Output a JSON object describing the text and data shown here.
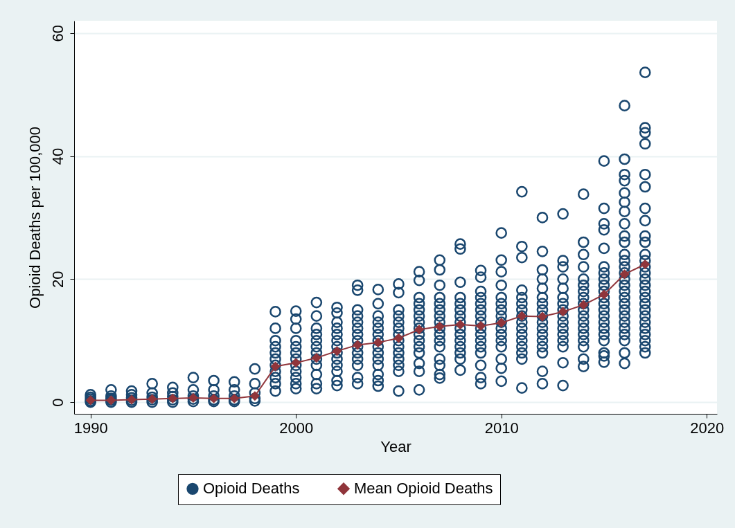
{
  "chart_data": {
    "type": "scatter",
    "xlabel": "Year",
    "ylabel": "Opioid Deaths per 100,000",
    "xlim": [
      1989.2,
      2020.5
    ],
    "ylim": [
      -1.9,
      62
    ],
    "xticks": [
      1990,
      2000,
      2010,
      2020
    ],
    "yticks": [
      0,
      20,
      40,
      60
    ],
    "grid": "y",
    "legend": "bottom",
    "series": [
      {
        "name": "Opioid Deaths",
        "marker": "circle",
        "color": "#1a476f",
        "x": [
          1990,
          1990,
          1990,
          1990,
          1990,
          1991,
          1991,
          1991,
          1991,
          1991,
          1992,
          1992,
          1992,
          1992,
          1992,
          1993,
          1993,
          1993,
          1993,
          1993,
          1994,
          1994,
          1994,
          1994,
          1994,
          1995,
          1995,
          1995,
          1995,
          1995,
          1996,
          1996,
          1996,
          1996,
          1996,
          1997,
          1997,
          1997,
          1997,
          1997,
          1998,
          1998,
          1998,
          1998,
          1998,
          1999,
          1999,
          1999,
          1999,
          1999,
          1999,
          1999,
          1999,
          1999,
          1999,
          1999,
          2000,
          2000,
          2000,
          2000,
          2000,
          2000,
          2000,
          2000,
          2000,
          2000,
          2000,
          2000,
          2001,
          2001,
          2001,
          2001,
          2001,
          2001,
          2001,
          2001,
          2001,
          2001,
          2001,
          2001,
          2002,
          2002,
          2002,
          2002,
          2002,
          2002,
          2002,
          2002,
          2002,
          2002,
          2002,
          2002,
          2002,
          2003,
          2003,
          2003,
          2003,
          2003,
          2003,
          2003,
          2003,
          2003,
          2003,
          2003,
          2003,
          2003,
          2003,
          2004,
          2004,
          2004,
          2004,
          2004,
          2004,
          2004,
          2004,
          2004,
          2004,
          2004,
          2004,
          2004,
          2004,
          2005,
          2005,
          2005,
          2005,
          2005,
          2005,
          2005,
          2005,
          2005,
          2005,
          2005,
          2005,
          2005,
          2005,
          2006,
          2006,
          2006,
          2006,
          2006,
          2006,
          2006,
          2006,
          2006,
          2006,
          2006,
          2006,
          2006,
          2006,
          2006,
          2007,
          2007,
          2007,
          2007,
          2007,
          2007,
          2007,
          2007,
          2007,
          2007,
          2007,
          2007,
          2007,
          2007,
          2007,
          2007,
          2008,
          2008,
          2008,
          2008,
          2008,
          2008,
          2008,
          2008,
          2008,
          2008,
          2008,
          2008,
          2008,
          2008,
          2008,
          2009,
          2009,
          2009,
          2009,
          2009,
          2009,
          2009,
          2009,
          2009,
          2009,
          2009,
          2009,
          2009,
          2009,
          2009,
          2009,
          2010,
          2010,
          2010,
          2010,
          2010,
          2010,
          2010,
          2010,
          2010,
          2010,
          2010,
          2010,
          2010,
          2010,
          2010,
          2010,
          2011,
          2011,
          2011,
          2011,
          2011,
          2011,
          2011,
          2011,
          2011,
          2011,
          2011,
          2011,
          2011,
          2011,
          2011,
          2011,
          2012,
          2012,
          2012,
          2012,
          2012,
          2012,
          2012,
          2012,
          2012,
          2012,
          2012,
          2012,
          2012,
          2012,
          2012,
          2012,
          2012,
          2013,
          2013,
          2013,
          2013,
          2013,
          2013,
          2013,
          2013,
          2013,
          2013,
          2013,
          2013,
          2013,
          2013,
          2013,
          2013,
          2014,
          2014,
          2014,
          2014,
          2014,
          2014,
          2014,
          2014,
          2014,
          2014,
          2014,
          2014,
          2014,
          2014,
          2014,
          2014,
          2014,
          2014,
          2015,
          2015,
          2015,
          2015,
          2015,
          2015,
          2015,
          2015,
          2015,
          2015,
          2015,
          2015,
          2015,
          2015,
          2015,
          2015,
          2015,
          2015,
          2015,
          2015,
          2015,
          2016,
          2016,
          2016,
          2016,
          2016,
          2016,
          2016,
          2016,
          2016,
          2016,
          2016,
          2016,
          2016,
          2016,
          2016,
          2016,
          2016,
          2016,
          2016,
          2016,
          2016,
          2016,
          2016,
          2016,
          2016,
          2016,
          2016,
          2017,
          2017,
          2017,
          2017,
          2017,
          2017,
          2017,
          2017,
          2017,
          2017,
          2017,
          2017,
          2017,
          2017,
          2017,
          2017,
          2017,
          2017,
          2017,
          2017,
          2017,
          2017,
          2017,
          2017,
          2017,
          2017,
          2017
        ],
        "values": [
          0,
          0.2,
          0.5,
          0.8,
          1.2,
          0,
          0.3,
          0.6,
          1.0,
          2.0,
          0,
          0.3,
          0.7,
          1.2,
          1.8,
          0,
          0.4,
          0.8,
          1.5,
          3.0,
          0,
          0.4,
          0.9,
          1.5,
          2.4,
          0.1,
          0.5,
          1.0,
          2.0,
          4.0,
          0.1,
          0.4,
          1.0,
          2.0,
          3.5,
          0.1,
          0.4,
          1.0,
          2.0,
          3.3,
          0.2,
          0.6,
          1.5,
          3.0,
          5.4,
          1.8,
          3,
          4,
          5,
          6,
          7,
          8,
          9,
          10,
          12,
          14.7,
          2.2,
          3,
          4,
          5,
          6,
          7,
          8,
          9,
          10,
          12,
          13.5,
          14.8,
          2.2,
          3,
          4.5,
          6,
          7,
          8,
          9,
          10,
          11,
          12,
          14,
          16.2,
          2.7,
          3.5,
          5,
          6,
          7,
          8,
          9,
          10,
          11,
          12,
          13,
          14.5,
          15.4,
          3,
          4,
          6,
          7,
          8,
          9,
          10,
          11,
          12,
          13,
          14,
          15,
          18.2,
          19,
          2.6,
          3.5,
          4.5,
          6,
          7,
          8,
          9,
          10,
          11,
          12,
          13,
          14,
          16,
          18.3,
          1.8,
          5,
          6,
          7,
          8,
          9,
          10,
          11,
          12,
          13,
          14,
          15,
          17.8,
          19.2,
          2.0,
          5,
          6.3,
          8,
          9,
          10,
          11,
          12,
          13,
          14,
          15,
          16,
          17,
          19.8,
          21.2,
          3.9,
          4.5,
          6,
          7,
          9,
          10,
          11,
          12,
          13,
          14,
          15,
          16,
          17,
          19,
          21.5,
          23.1,
          5.2,
          7,
          8,
          9,
          10,
          11,
          12,
          13,
          14,
          15,
          16,
          17,
          19.5,
          24.9,
          25.7,
          3,
          4,
          6,
          8,
          9,
          10,
          11,
          12,
          13,
          14,
          15,
          16,
          17,
          18,
          20.3,
          21.4,
          3.4,
          5.5,
          7,
          9,
          10,
          11,
          12,
          13,
          14,
          15,
          16,
          17,
          19,
          21.2,
          23.1,
          27.5,
          2.3,
          7,
          8,
          9,
          10,
          11,
          12,
          13,
          14,
          15,
          16,
          17,
          18.2,
          23.5,
          25.3,
          34.2,
          3,
          5,
          8,
          9,
          10,
          11,
          12,
          13,
          14,
          15,
          16,
          17,
          18.5,
          20,
          21.5,
          24.5,
          30,
          2.7,
          6.4,
          9,
          10,
          11,
          12,
          13,
          14,
          15,
          16,
          17,
          18.5,
          20,
          22,
          23,
          30.6,
          5.8,
          7,
          9,
          10,
          11,
          12,
          13,
          14,
          15,
          16,
          17,
          18,
          19,
          20,
          22,
          24,
          26,
          33.8,
          6.5,
          7.5,
          8,
          10,
          11,
          12,
          13,
          14,
          15,
          16,
          17,
          18,
          19,
          20,
          21,
          22,
          25,
          28,
          29,
          31.5,
          39.2,
          6.3,
          8,
          10,
          11,
          12,
          13,
          14,
          15,
          16,
          17,
          18,
          19,
          20,
          21,
          22,
          23,
          24,
          26,
          27,
          29,
          31,
          32.5,
          34,
          36,
          37,
          39.5,
          48.2,
          8,
          9,
          10,
          11,
          12,
          13,
          14,
          15,
          16,
          17,
          18,
          19,
          20,
          21,
          22,
          23,
          24,
          26,
          27,
          29.5,
          31.5,
          35,
          37,
          42,
          43.8,
          44.6,
          53.6
        ]
      },
      {
        "name": "Mean Opioid Deaths",
        "type": "line",
        "marker": "diamond",
        "color": "#90353b",
        "x": [
          1990,
          1991,
          1992,
          1993,
          1994,
          1995,
          1996,
          1997,
          1998,
          1999,
          2000,
          2001,
          2002,
          2003,
          2004,
          2005,
          2006,
          2007,
          2008,
          2009,
          2010,
          2011,
          2012,
          2013,
          2014,
          2015,
          2016,
          2017
        ],
        "values": [
          0.3,
          0.3,
          0.4,
          0.5,
          0.6,
          0.7,
          0.6,
          0.6,
          1.0,
          5.8,
          6.4,
          7.2,
          8.3,
          9.3,
          9.7,
          10.4,
          11.8,
          12.3,
          12.6,
          12.4,
          12.9,
          14.0,
          13.9,
          14.7,
          15.8,
          17.5,
          20.8,
          22.4
        ]
      }
    ]
  }
}
